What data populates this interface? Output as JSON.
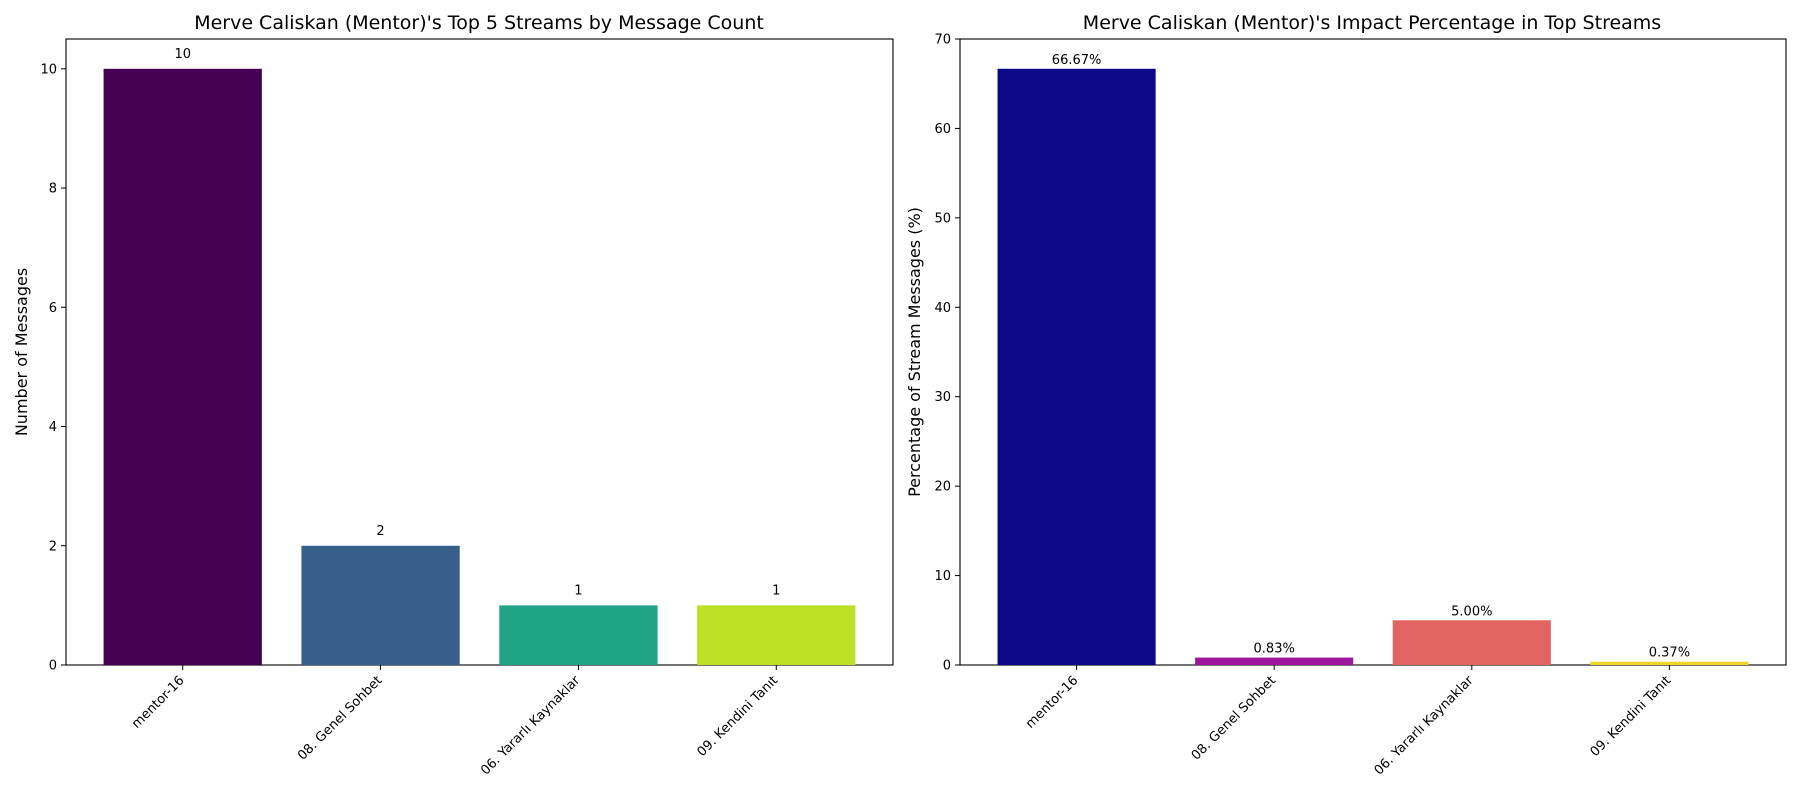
{
  "chart_data": [
    {
      "type": "bar",
      "title": "Merve Caliskan (Mentor)'s Top 5 Streams by Message Count",
      "xlabel": "",
      "ylabel": "Number of Messages",
      "categories": [
        "mentor-16",
        "08. Genel Sohbet",
        "06. Yararlı Kaynaklar",
        "09. Kendini Tanıt"
      ],
      "values": [
        10,
        2,
        1,
        1
      ],
      "data_labels": [
        "10",
        "2",
        "1",
        "1"
      ],
      "colors": [
        "#440154",
        "#365f8c",
        "#20a486",
        "#bddf26"
      ],
      "ylim": [
        0,
        10.5
      ],
      "yticks": [
        0,
        2,
        4,
        6,
        8,
        10
      ],
      "ytick_labels": [
        "0",
        "2",
        "4",
        "6",
        "8",
        "10"
      ],
      "grid": false,
      "legend": "none"
    },
    {
      "type": "bar",
      "title": "Merve Caliskan (Mentor)'s Impact Percentage in Top Streams",
      "xlabel": "",
      "ylabel": "Percentage of Stream Messages (%)",
      "categories": [
        "mentor-16",
        "08. Genel Sohbet",
        "06. Yararlı Kaynaklar",
        "09. Kendini Tanıt"
      ],
      "values": [
        66.67,
        0.83,
        5.0,
        0.37
      ],
      "data_labels": [
        "66.67%",
        "0.83%",
        "5.00%",
        "0.37%"
      ],
      "colors": [
        "#0d0887",
        "#9c179e",
        "#e16462",
        "#f0d626"
      ],
      "ylim": [
        0,
        70
      ],
      "yticks": [
        0,
        10,
        20,
        30,
        40,
        50,
        60,
        70
      ],
      "ytick_labels": [
        "0",
        "10",
        "20",
        "30",
        "40",
        "50",
        "60",
        "70"
      ],
      "grid": false,
      "legend": "none"
    }
  ]
}
